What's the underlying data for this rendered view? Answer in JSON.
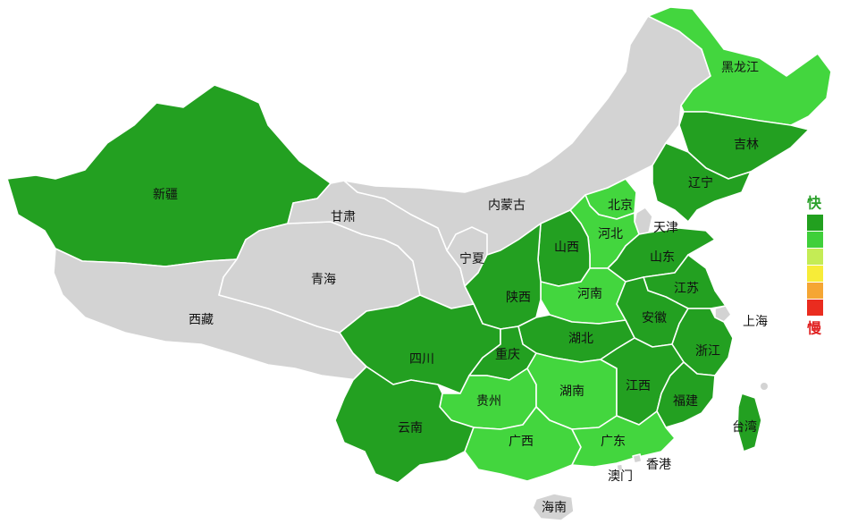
{
  "colors": {
    "gray": "#d3d3d3",
    "dark_green": "#23a021",
    "light_green": "#43d63e",
    "fast": "#2aa02a",
    "slow": "#e02020",
    "legend": [
      "#22a01f",
      "#3fcf3a",
      "#c4ec55",
      "#f7ec38",
      "#f5a634",
      "#ea2c1f"
    ]
  },
  "legend": {
    "fast": "快",
    "slow": "慢"
  },
  "provinces": [
    {
      "id": "xinjiang",
      "name": "新疆",
      "color": "dark_green"
    },
    {
      "id": "xizang",
      "name": "西藏",
      "color": "gray"
    },
    {
      "id": "qinghai",
      "name": "青海",
      "color": "gray"
    },
    {
      "id": "gansu",
      "name": "甘肃",
      "color": "gray"
    },
    {
      "id": "neimenggu",
      "name": "内蒙古",
      "color": "gray"
    },
    {
      "id": "ningxia",
      "name": "宁夏",
      "color": "gray"
    },
    {
      "id": "heilongjiang",
      "name": "黑龙江",
      "color": "light_green"
    },
    {
      "id": "jilin",
      "name": "吉林",
      "color": "dark_green"
    },
    {
      "id": "liaoning",
      "name": "辽宁",
      "color": "dark_green"
    },
    {
      "id": "beijing",
      "name": "北京",
      "color": "light_green"
    },
    {
      "id": "tianjin",
      "name": "天津",
      "color": "gray"
    },
    {
      "id": "hebei",
      "name": "河北",
      "color": "light_green"
    },
    {
      "id": "shanxi",
      "name": "山西",
      "color": "dark_green"
    },
    {
      "id": "shandong",
      "name": "山东",
      "color": "dark_green"
    },
    {
      "id": "henan",
      "name": "河南",
      "color": "light_green"
    },
    {
      "id": "shaanxi",
      "name": "陕西",
      "color": "dark_green"
    },
    {
      "id": "jiangsu",
      "name": "江苏",
      "color": "dark_green"
    },
    {
      "id": "shanghai",
      "name": "上海",
      "color": "gray"
    },
    {
      "id": "anhui",
      "name": "安徽",
      "color": "dark_green"
    },
    {
      "id": "zhejiang",
      "name": "浙江",
      "color": "dark_green"
    },
    {
      "id": "hubei",
      "name": "湖北",
      "color": "dark_green"
    },
    {
      "id": "sichuan",
      "name": "四川",
      "color": "dark_green"
    },
    {
      "id": "chongqing",
      "name": "重庆",
      "color": "dark_green"
    },
    {
      "id": "guizhou",
      "name": "贵州",
      "color": "light_green"
    },
    {
      "id": "hunan",
      "name": "湖南",
      "color": "light_green"
    },
    {
      "id": "jiangxi",
      "name": "江西",
      "color": "dark_green"
    },
    {
      "id": "fujian",
      "name": "福建",
      "color": "dark_green"
    },
    {
      "id": "taiwan",
      "name": "台湾",
      "color": "dark_green"
    },
    {
      "id": "yunnan",
      "name": "云南",
      "color": "dark_green"
    },
    {
      "id": "guangxi",
      "name": "广西",
      "color": "light_green"
    },
    {
      "id": "guangdong",
      "name": "广东",
      "color": "light_green"
    },
    {
      "id": "xianggang",
      "name": "香港",
      "color": "gray"
    },
    {
      "id": "aomen",
      "name": "澳门",
      "color": "gray"
    },
    {
      "id": "hainan",
      "name": "海南",
      "color": "gray"
    }
  ]
}
